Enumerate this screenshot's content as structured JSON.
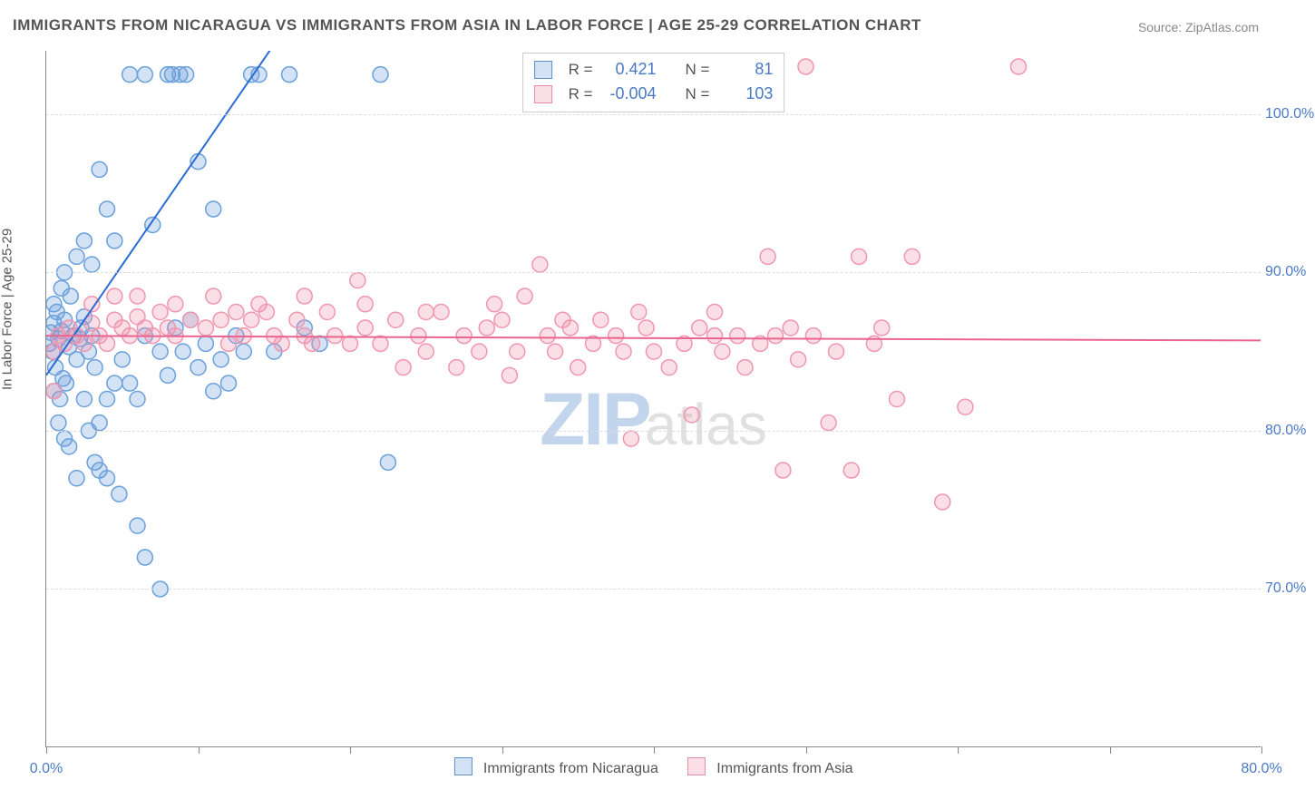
{
  "title": "IMMIGRANTS FROM NICARAGUA VS IMMIGRANTS FROM ASIA IN LABOR FORCE | AGE 25-29 CORRELATION CHART",
  "source": "Source: ZipAtlas.com",
  "ylabel": "In Labor Force | Age 25-29",
  "watermark": {
    "zip": "ZIP",
    "atlas": "atlas"
  },
  "chart": {
    "type": "scatter",
    "background_color": "#ffffff",
    "grid_color": "#dddddd",
    "axis_color": "#888888",
    "tick_label_color": "#4a7ac7",
    "tick_fontsize": 16,
    "title_fontsize": 17,
    "title_color": "#555555",
    "label_fontsize": 15,
    "xlim": [
      0,
      80
    ],
    "ylim": [
      60,
      104
    ],
    "y_gridlines": [
      70,
      80,
      90,
      100
    ],
    "y_tick_labels": [
      "70.0%",
      "80.0%",
      "90.0%",
      "100.0%"
    ],
    "x_ticks": [
      0,
      10,
      20,
      30,
      40,
      50,
      60,
      70,
      80
    ],
    "x_tick_labels": {
      "0": "0.0%",
      "80": "80.0%"
    },
    "marker_radius": 8.5,
    "marker_stroke_width": 1.5,
    "line_width": 2,
    "series": [
      {
        "key": "nicaragua",
        "label": "Immigrants from Nicaragua",
        "fill": "rgba(110,160,220,0.30)",
        "stroke": "#6aa0dc",
        "line_color": "#2b6cd4",
        "legend_border": "#5a90cc",
        "legend_fill": "rgba(110,160,220,0.30)",
        "R": "0.421",
        "N": "81",
        "regression": {
          "x1": 0,
          "y1": 83.5,
          "x2": 80,
          "y2": 195
        },
        "points": [
          [
            0.2,
            85.5
          ],
          [
            0.3,
            86.2
          ],
          [
            0.4,
            85.0
          ],
          [
            0.5,
            86.8
          ],
          [
            0.6,
            84.0
          ],
          [
            0.7,
            87.5
          ],
          [
            0.8,
            85.8
          ],
          [
            1.0,
            86.3
          ],
          [
            1.2,
            87.0
          ],
          [
            1.3,
            83.0
          ],
          [
            1.5,
            85.3
          ],
          [
            1.6,
            88.5
          ],
          [
            1.8,
            86.0
          ],
          [
            2.0,
            84.5
          ],
          [
            0.5,
            82.5
          ],
          [
            0.9,
            82.0
          ],
          [
            1.1,
            83.3
          ],
          [
            2.2,
            85.8
          ],
          [
            2.3,
            86.5
          ],
          [
            2.5,
            87.2
          ],
          [
            2.8,
            85.0
          ],
          [
            3.0,
            86.0
          ],
          [
            3.2,
            84.0
          ],
          [
            3.5,
            80.5
          ],
          [
            3.5,
            77.5
          ],
          [
            4.0,
            82.0
          ],
          [
            4.5,
            83.0
          ],
          [
            5.0,
            84.5
          ],
          [
            5.5,
            83.0
          ],
          [
            6.0,
            82.0
          ],
          [
            2.8,
            80.0
          ],
          [
            3.2,
            78.0
          ],
          [
            4.0,
            77.0
          ],
          [
            4.8,
            76.0
          ],
          [
            6.0,
            74.0
          ],
          [
            6.5,
            72.0
          ],
          [
            7.5,
            70.0
          ],
          [
            0.8,
            80.5
          ],
          [
            1.2,
            79.5
          ],
          [
            1.5,
            79.0
          ],
          [
            2.0,
            77.0
          ],
          [
            2.5,
            82.0
          ],
          [
            0.5,
            88.0
          ],
          [
            1.0,
            89.0
          ],
          [
            1.2,
            90.0
          ],
          [
            2.0,
            91.0
          ],
          [
            2.5,
            92.0
          ],
          [
            3.0,
            90.5
          ],
          [
            3.5,
            96.5
          ],
          [
            4.0,
            94.0
          ],
          [
            4.5,
            92.0
          ],
          [
            5.5,
            102.5
          ],
          [
            6.5,
            102.5
          ],
          [
            7.0,
            93.0
          ],
          [
            8.0,
            102.5
          ],
          [
            8.3,
            102.5
          ],
          [
            8.8,
            102.5
          ],
          [
            9.2,
            102.5
          ],
          [
            10.0,
            97.0
          ],
          [
            11.0,
            94.0
          ],
          [
            12.5,
            86.0
          ],
          [
            13.0,
            85.0
          ],
          [
            13.5,
            102.5
          ],
          [
            14.0,
            102.5
          ],
          [
            15.0,
            85.0
          ],
          [
            16.0,
            102.5
          ],
          [
            17.0,
            86.5
          ],
          [
            18.0,
            85.5
          ],
          [
            22.0,
            102.5
          ],
          [
            22.5,
            78.0
          ],
          [
            11.0,
            82.5
          ],
          [
            12.0,
            83.0
          ],
          [
            10.0,
            84.0
          ],
          [
            9.0,
            85.0
          ],
          [
            7.5,
            85.0
          ],
          [
            8.5,
            86.5
          ],
          [
            9.5,
            87.0
          ],
          [
            10.5,
            85.5
          ],
          [
            11.5,
            84.5
          ],
          [
            8.0,
            83.5
          ],
          [
            6.5,
            86.0
          ]
        ]
      },
      {
        "key": "asia",
        "label": "Immigrants from Asia",
        "fill": "rgba(240,150,175,0.30)",
        "stroke": "#f096af",
        "line_color": "#e9648f",
        "legend_border": "#e88aa5",
        "legend_fill": "rgba(240,150,175,0.30)",
        "R": "-0.004",
        "N": "103",
        "regression": {
          "x1": 0,
          "y1": 86.0,
          "x2": 80,
          "y2": 85.7
        },
        "points": [
          [
            0.5,
            85.0
          ],
          [
            0.8,
            86.0
          ],
          [
            1.2,
            85.5
          ],
          [
            1.5,
            86.5
          ],
          [
            2.0,
            86.0
          ],
          [
            2.5,
            85.5
          ],
          [
            3.0,
            86.8
          ],
          [
            3.5,
            86.0
          ],
          [
            4.0,
            85.5
          ],
          [
            4.5,
            87.0
          ],
          [
            5.0,
            86.5
          ],
          [
            5.5,
            86.0
          ],
          [
            6.0,
            87.2
          ],
          [
            6.5,
            86.5
          ],
          [
            7.0,
            86.0
          ],
          [
            7.5,
            87.5
          ],
          [
            8.0,
            86.5
          ],
          [
            8.5,
            86.0
          ],
          [
            9.5,
            87.0
          ],
          [
            10.5,
            86.5
          ],
          [
            11.5,
            87.0
          ],
          [
            12.0,
            85.5
          ],
          [
            12.5,
            87.5
          ],
          [
            13.0,
            86.0
          ],
          [
            13.5,
            87.0
          ],
          [
            14.5,
            87.5
          ],
          [
            15.0,
            86.0
          ],
          [
            15.5,
            85.5
          ],
          [
            16.5,
            87.0
          ],
          [
            17.0,
            86.0
          ],
          [
            17.5,
            85.5
          ],
          [
            18.5,
            87.5
          ],
          [
            19.0,
            86.0
          ],
          [
            20.0,
            85.5
          ],
          [
            20.5,
            89.5
          ],
          [
            21.0,
            86.5
          ],
          [
            22.0,
            85.5
          ],
          [
            23.0,
            87.0
          ],
          [
            23.5,
            84.0
          ],
          [
            24.5,
            86.0
          ],
          [
            25.0,
            85.0
          ],
          [
            26.0,
            87.5
          ],
          [
            27.0,
            84.0
          ],
          [
            27.5,
            86.0
          ],
          [
            28.5,
            85.0
          ],
          [
            29.0,
            86.5
          ],
          [
            30.0,
            87.0
          ],
          [
            30.5,
            83.5
          ],
          [
            31.0,
            85.0
          ],
          [
            31.5,
            88.5
          ],
          [
            32.5,
            90.5
          ],
          [
            33.0,
            86.0
          ],
          [
            33.5,
            85.0
          ],
          [
            34.5,
            86.5
          ],
          [
            35.0,
            84.0
          ],
          [
            36.0,
            85.5
          ],
          [
            36.5,
            87.0
          ],
          [
            37.5,
            86.0
          ],
          [
            38.0,
            85.0
          ],
          [
            38.5,
            79.5
          ],
          [
            39.5,
            86.5
          ],
          [
            40.0,
            85.0
          ],
          [
            41.0,
            84.0
          ],
          [
            42.0,
            85.5
          ],
          [
            42.5,
            81.0
          ],
          [
            43.0,
            86.5
          ],
          [
            44.0,
            87.5
          ],
          [
            44.5,
            85.0
          ],
          [
            45.5,
            86.0
          ],
          [
            46.0,
            84.0
          ],
          [
            47.0,
            85.5
          ],
          [
            47.5,
            91.0
          ],
          [
            48.0,
            86.0
          ],
          [
            48.5,
            77.5
          ],
          [
            49.5,
            84.5
          ],
          [
            50.0,
            103.0
          ],
          [
            50.5,
            86.0
          ],
          [
            51.5,
            80.5
          ],
          [
            52.0,
            85.0
          ],
          [
            53.0,
            77.5
          ],
          [
            53.5,
            91.0
          ],
          [
            54.5,
            85.5
          ],
          [
            55.0,
            86.5
          ],
          [
            56.0,
            82.0
          ],
          [
            57.0,
            91.0
          ],
          [
            59.0,
            75.5
          ],
          [
            60.5,
            81.5
          ],
          [
            64.0,
            103.0
          ],
          [
            3.0,
            88.0
          ],
          [
            4.5,
            88.5
          ],
          [
            6.0,
            88.5
          ],
          [
            8.5,
            88.0
          ],
          [
            11.0,
            88.5
          ],
          [
            14.0,
            88.0
          ],
          [
            17.0,
            88.5
          ],
          [
            21.0,
            88.0
          ],
          [
            25.0,
            87.5
          ],
          [
            29.5,
            88.0
          ],
          [
            34.0,
            87.0
          ],
          [
            39.0,
            87.5
          ],
          [
            44.0,
            86.0
          ],
          [
            49.0,
            86.5
          ],
          [
            0.5,
            82.5
          ]
        ]
      }
    ]
  },
  "legend_top": {
    "r_label": "R =",
    "n_label": "N ="
  }
}
